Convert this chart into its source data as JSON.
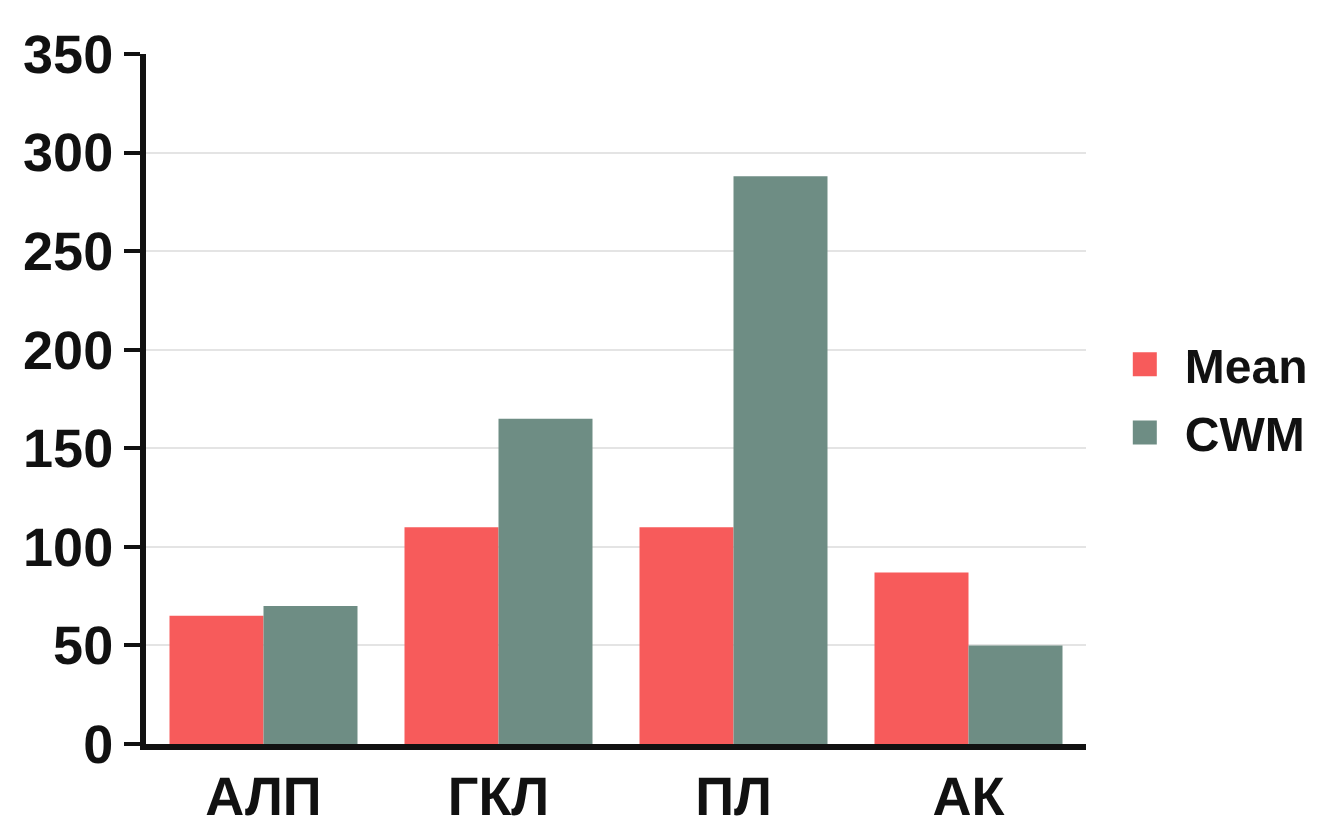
{
  "chart_data": {
    "type": "bar",
    "categories": [
      "АЛП",
      "ГКЛ",
      "ПЛ",
      "АК"
    ],
    "series": [
      {
        "name": "Mean",
        "color": "#f75b5b",
        "values": [
          65,
          110,
          110,
          87
        ]
      },
      {
        "name": "CWM",
        "color": "#6e8d84",
        "values": [
          70,
          165,
          288,
          50
        ]
      }
    ],
    "ylim": [
      0,
      350
    ],
    "yticks": [
      0,
      50,
      100,
      150,
      200,
      250,
      300,
      350
    ],
    "grid": "y",
    "legend": "right"
  }
}
